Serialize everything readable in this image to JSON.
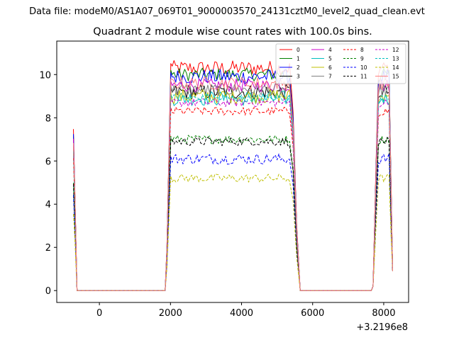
{
  "figure": {
    "suptitle": "Data file: modeM0/AS1A07_069T01_9000003570_24131cztM0_level2_quad_clean.evt",
    "offset_text": "+3.2196e8"
  },
  "chart_data": {
    "type": "line",
    "title": "Quadrant 2 module wise count rates with 100.0s bins.",
    "xlabel": "",
    "ylabel": "",
    "x_offset": 321960000,
    "xlim": [
      -1200,
      8700
    ],
    "ylim": [
      -0.55,
      11.55
    ],
    "x_ticks": [
      0,
      2000,
      4000,
      6000,
      8000
    ],
    "x_tick_labels": [
      "0",
      "2000",
      "4000",
      "6000",
      "8000"
    ],
    "y_ticks": [
      0,
      2,
      4,
      6,
      8,
      10
    ],
    "y_tick_labels": [
      "0",
      "2",
      "4",
      "6",
      "8",
      "10"
    ],
    "grid": false,
    "legend_position": "top-right",
    "legend_columns": 4,
    "segments": [
      {
        "rise": [
          -730,
          -630
        ],
        "fall_to_zero": -630
      },
      {
        "rise": [
          1850,
          2050
        ],
        "plateau": [
          2050,
          5350
        ],
        "fall": [
          5350,
          5650
        ]
      },
      {
        "rise": [
          7650,
          7850
        ],
        "plateau": [
          7850,
          8150
        ],
        "fall": [
          8150,
          8250
        ]
      }
    ],
    "series": [
      {
        "name": "0",
        "color": "#ff0000",
        "dash": "solid",
        "level": 10.3,
        "noise": 0.35
      },
      {
        "name": "1",
        "color": "#008000",
        "dash": "solid",
        "level": 10.0,
        "noise": 0.3
      },
      {
        "name": "2",
        "color": "#0000ff",
        "dash": "solid",
        "level": 9.9,
        "noise": 0.35
      },
      {
        "name": "3",
        "color": "#000000",
        "dash": "solid",
        "level": 9.2,
        "noise": 0.35
      },
      {
        "name": "4",
        "color": "#cc00cc",
        "dash": "solid",
        "level": 9.5,
        "noise": 0.3
      },
      {
        "name": "5",
        "color": "#00bfbf",
        "dash": "solid",
        "level": 8.9,
        "noise": 0.35
      },
      {
        "name": "6",
        "color": "#bfbf00",
        "dash": "solid",
        "level": 9.0,
        "noise": 0.35
      },
      {
        "name": "7",
        "color": "#808080",
        "dash": "solid",
        "level": 9.3,
        "noise": 0.3
      },
      {
        "name": "8",
        "color": "#ff0000",
        "dash": "dashed",
        "level": 8.3,
        "noise": 0.2
      },
      {
        "name": "9",
        "color": "#008000",
        "dash": "dashed",
        "level": 7.0,
        "noise": 0.2
      },
      {
        "name": "10",
        "color": "#0000ff",
        "dash": "dashed",
        "level": 6.1,
        "noise": 0.25
      },
      {
        "name": "11",
        "color": "#000000",
        "dash": "dashed",
        "level": 6.9,
        "noise": 0.2
      },
      {
        "name": "12",
        "color": "#cc00cc",
        "dash": "dashed",
        "level": 8.7,
        "noise": 0.2
      },
      {
        "name": "13",
        "color": "#00bfbf",
        "dash": "dashed",
        "level": 8.9,
        "noise": 0.2
      },
      {
        "name": "14",
        "color": "#bfbf00",
        "dash": "dashed",
        "level": 5.2,
        "noise": 0.2
      },
      {
        "name": "15",
        "color": "#ff8080",
        "dash": "solid",
        "level": 9.6,
        "noise": 0.3
      }
    ]
  }
}
